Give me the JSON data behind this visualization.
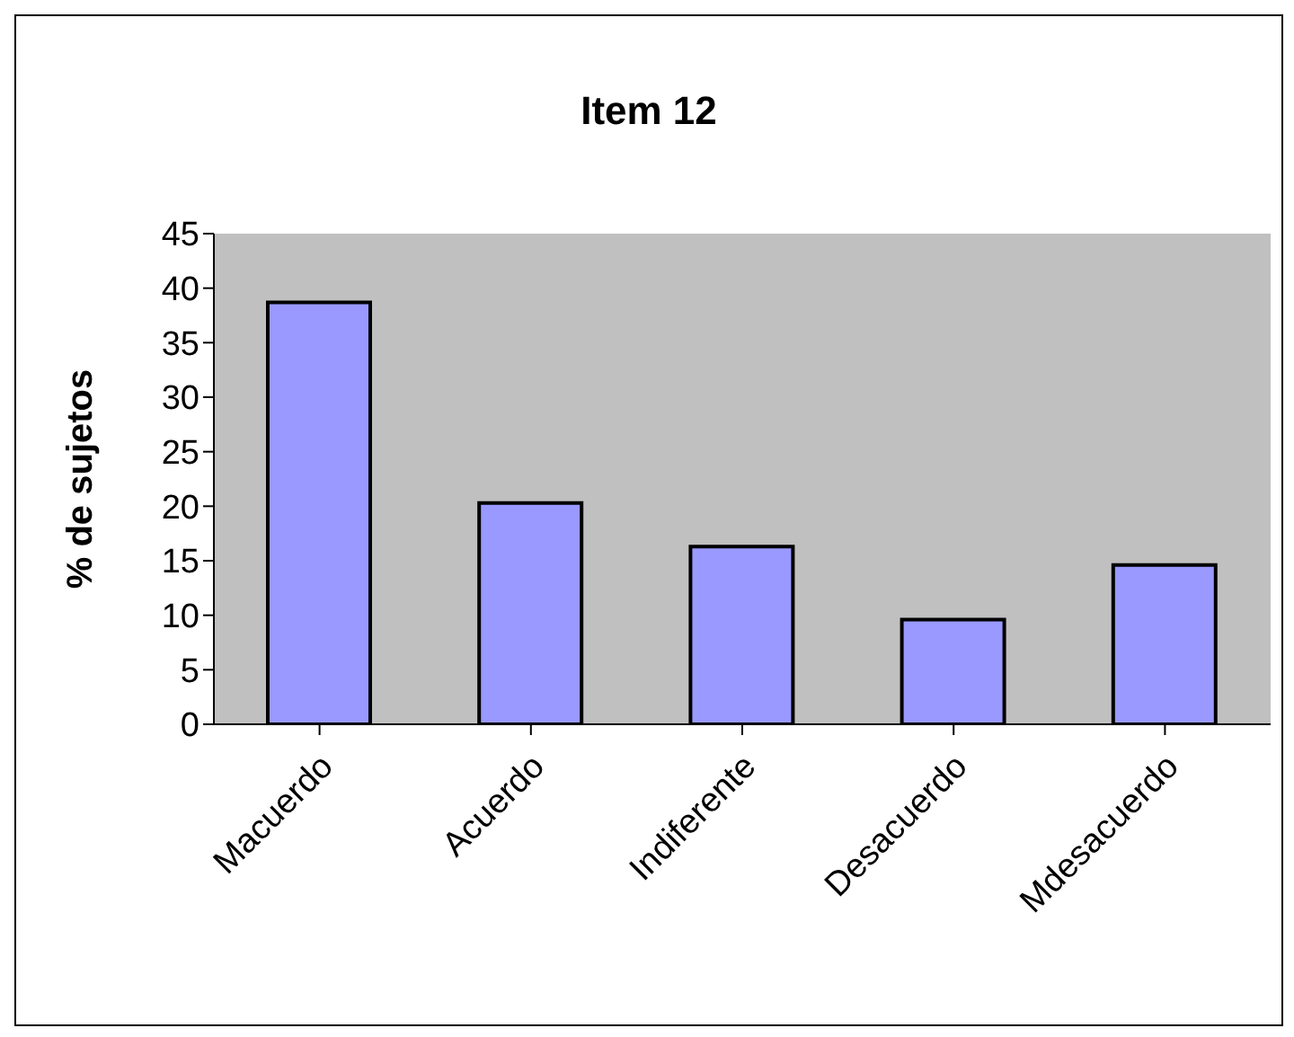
{
  "chart_data": {
    "type": "bar",
    "title": "Item 12",
    "ylabel": "% de sujetos",
    "categories": [
      "Macuerdo",
      "Acuerdo",
      "Indiferente",
      "Desacuerdo",
      "Mdesacuerdo"
    ],
    "values": [
      38.7,
      20.3,
      16.3,
      9.6,
      14.6
    ],
    "color": "#9999ff",
    "ylim": [
      0,
      45
    ],
    "yticks": [
      0,
      5,
      10,
      15,
      20,
      25,
      30,
      35,
      40,
      45
    ],
    "grid": false
  }
}
